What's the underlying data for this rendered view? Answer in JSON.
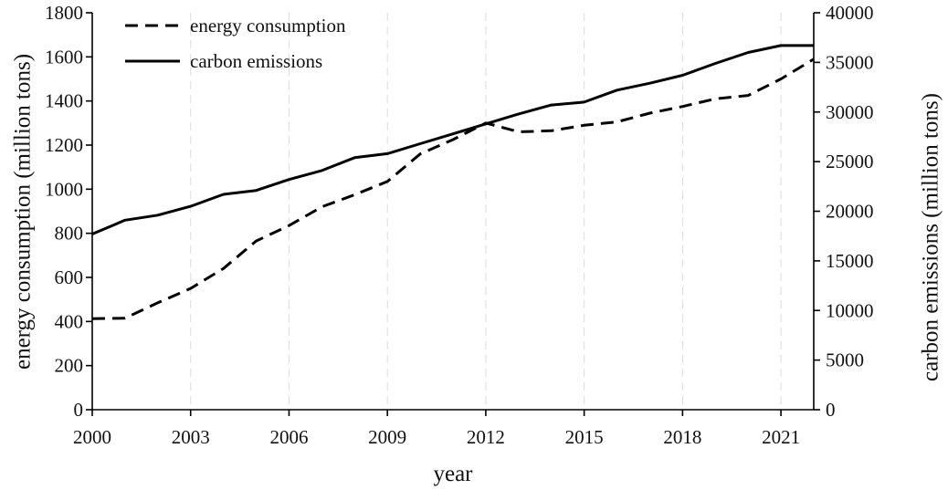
{
  "chart_data": {
    "type": "line",
    "title": "",
    "x": [
      2000,
      2001,
      2002,
      2003,
      2004,
      2005,
      2006,
      2007,
      2008,
      2009,
      2010,
      2011,
      2012,
      2013,
      2014,
      2015,
      2016,
      2017,
      2018,
      2019,
      2020,
      2021,
      2022
    ],
    "xticks": [
      "2000",
      "2003",
      "2006",
      "2009",
      "2012",
      "2015",
      "2018",
      "2021"
    ],
    "xlabel": "year",
    "xlim": [
      2000,
      2022
    ],
    "grid": "vertical dashed",
    "legend_position": "top-left",
    "series": [
      {
        "name": "energy consumption",
        "axis": "left",
        "style": "dashed",
        "values": [
          413,
          415,
          485,
          550,
          640,
          765,
          835,
          920,
          975,
          1035,
          1160,
          1225,
          1300,
          1260,
          1265,
          1290,
          1305,
          1345,
          1375,
          1410,
          1425,
          1500,
          1590
        ]
      },
      {
        "name": "carbon emissions",
        "axis": "right",
        "style": "solid",
        "values": [
          17700,
          19100,
          19600,
          20500,
          21700,
          22100,
          23200,
          24100,
          25400,
          25800,
          26800,
          27800,
          28800,
          29800,
          30700,
          31000,
          32200,
          32900,
          33700,
          34900,
          36000,
          36700,
          36700
        ]
      }
    ],
    "y_left": {
      "label": "energy consumption (million tons)",
      "ylim": [
        0,
        1800
      ],
      "ticks": [
        "0",
        "200",
        "400",
        "600",
        "800",
        "1000",
        "1200",
        "1400",
        "1600",
        "1800"
      ]
    },
    "y_right": {
      "label": "carbon emissions (million tons)",
      "ylim": [
        0,
        40000
      ],
      "ticks": [
        "0",
        "5000",
        "10000",
        "15000",
        "20000",
        "25000",
        "30000",
        "35000",
        "40000"
      ]
    }
  }
}
